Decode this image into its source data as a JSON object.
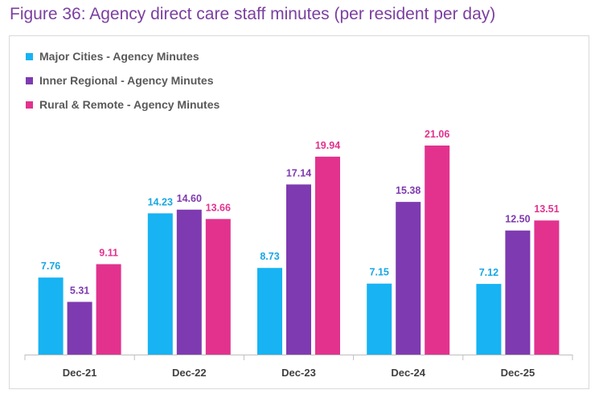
{
  "chart_data": {
    "type": "bar",
    "title": "Figure 36: Agency direct care staff minutes (per resident per day)",
    "categories": [
      "Dec-21",
      "Dec-22",
      "Dec-23",
      "Dec-24",
      "Dec-25"
    ],
    "series": [
      {
        "name": "Major Cities - Agency Minutes",
        "color": "#17b3f3",
        "label_color": "#17a7e3",
        "values": [
          7.76,
          14.23,
          8.73,
          7.15,
          7.12
        ],
        "labels": [
          "7.76",
          "14.23",
          "8.73",
          "7.15",
          "7.12"
        ]
      },
      {
        "name": "Inner Regional - Agency Minutes",
        "color": "#7e3ab0",
        "label_color": "#7e3ab0",
        "values": [
          5.31,
          14.6,
          17.14,
          15.38,
          12.5
        ],
        "labels": [
          "5.31",
          "14.60",
          "17.14",
          "15.38",
          "12.50"
        ]
      },
      {
        "name": "Rural & Remote - Agency Minutes",
        "color": "#e2328e",
        "label_color": "#e2328e",
        "values": [
          9.11,
          13.66,
          19.94,
          21.06,
          13.51
        ],
        "labels": [
          "9.11",
          "13.66",
          "19.94",
          "21.06",
          "13.51"
        ]
      }
    ],
    "ylim": [
      0,
      21.06
    ],
    "xlabel": "",
    "ylabel": "",
    "legend": "top-left",
    "grid": false
  }
}
